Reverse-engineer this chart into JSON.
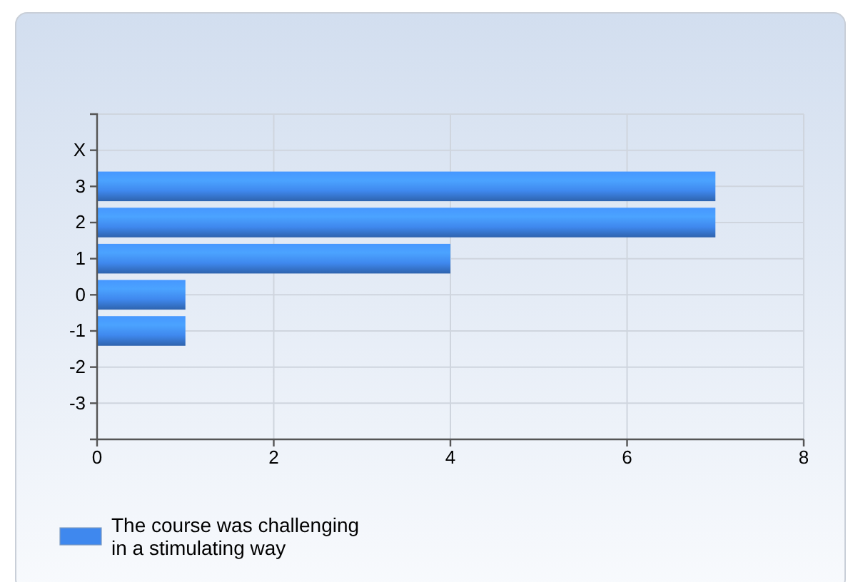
{
  "chart_data": {
    "type": "bar",
    "orientation": "horizontal",
    "categories": [
      "X",
      "3",
      "2",
      "1",
      "0",
      "-1",
      "-2",
      "-3"
    ],
    "series": [
      {
        "name": "The course was challenging in a stimulating way",
        "color": "#3f88ee",
        "values": [
          0,
          7,
          7,
          4,
          1,
          1,
          0,
          0
        ]
      }
    ],
    "xlim": [
      0,
      8
    ],
    "xticks": [
      0,
      2,
      4,
      6,
      8
    ],
    "grid": true,
    "legend": "bottom left"
  }
}
